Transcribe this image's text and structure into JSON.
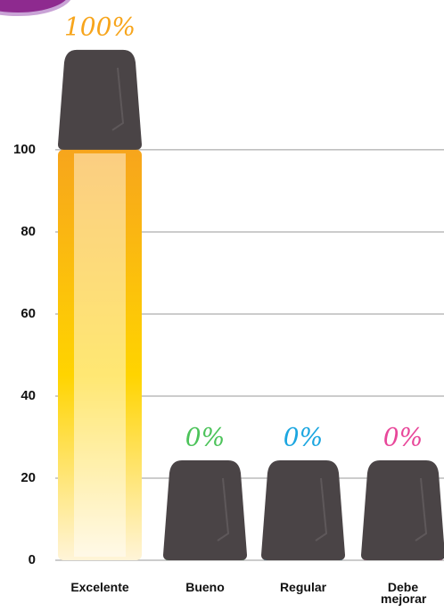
{
  "chart_data": {
    "type": "bar",
    "categories": [
      "Excelente",
      "Bueno",
      "Regular",
      "Debe mejorar"
    ],
    "values": [
      100,
      0,
      0,
      0
    ],
    "value_labels": [
      "100%",
      "0%",
      "0%",
      "0%"
    ],
    "colors": [
      "#f7a51c",
      "#4cc35a",
      "#1ba6e0",
      "#e8479a"
    ],
    "ylim": [
      0,
      136.5
    ],
    "yticks": [
      0,
      20,
      40,
      60,
      80,
      100
    ],
    "grid": true
  }
}
